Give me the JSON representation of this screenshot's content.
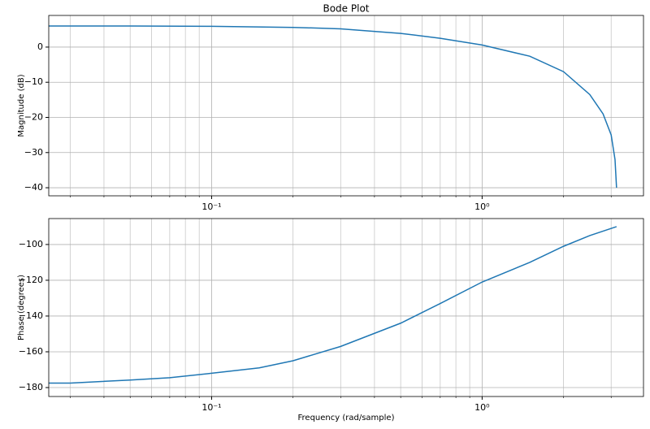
{
  "chart_data": [
    {
      "type": "line",
      "title": "Bode Plot",
      "ylabel": "Magnitude (dB)",
      "log_x": true,
      "grid": true,
      "xlim": [
        0.025,
        3.95
      ],
      "ylim": [
        -42.3,
        9
      ],
      "xticks": [
        {
          "value": 0.1,
          "label": "10⁻¹"
        },
        {
          "value": 1,
          "label": "10⁰"
        }
      ],
      "xminor_ticks": [
        0.03,
        0.04,
        0.05,
        0.06,
        0.07,
        0.08,
        0.09,
        0.2,
        0.3,
        0.4,
        0.5,
        0.6,
        0.7,
        0.8,
        0.9,
        2,
        3
      ],
      "yticks": [
        0,
        {
          "value": -10,
          "label": "−10"
        },
        {
          "value": -20,
          "label": "−20"
        },
        {
          "value": -30,
          "label": "−30"
        },
        {
          "value": -40,
          "label": "−40"
        }
      ],
      "x": [
        0.025,
        0.05,
        0.1,
        0.2,
        0.3,
        0.5,
        0.7,
        1.0,
        1.5,
        2.0,
        2.5,
        2.8,
        3.0,
        3.1,
        3.14
      ],
      "series": [
        {
          "color": "#1f77b4",
          "values": [
            6.0,
            6.0,
            5.9,
            5.6,
            5.2,
            3.9,
            2.5,
            0.6,
            -2.6,
            -7.0,
            -13.5,
            -19,
            -25,
            -32,
            -40
          ]
        }
      ]
    },
    {
      "type": "line",
      "ylabel": "Phase (degrees)",
      "xlabel": "Frequency (rad/sample)",
      "log_x": true,
      "grid": true,
      "xlim": [
        0.025,
        3.95
      ],
      "ylim": [
        -185,
        -85.5
      ],
      "xticks": [
        {
          "value": 0.1,
          "label": "10⁻¹"
        },
        {
          "value": 1,
          "label": "10⁰"
        }
      ],
      "xminor_ticks": [
        0.03,
        0.04,
        0.05,
        0.06,
        0.07,
        0.08,
        0.09,
        0.2,
        0.3,
        0.4,
        0.5,
        0.6,
        0.7,
        0.8,
        0.9,
        2,
        3
      ],
      "yticks": [
        {
          "value": -100,
          "label": "−100"
        },
        {
          "value": -120,
          "label": "−120"
        },
        {
          "value": -140,
          "label": "−140"
        },
        {
          "value": -160,
          "label": "−160"
        },
        {
          "value": -180,
          "label": "−180"
        }
      ],
      "x": [
        0.025,
        0.03,
        0.05,
        0.07,
        0.1,
        0.15,
        0.2,
        0.3,
        0.5,
        0.7,
        1.0,
        1.5,
        2.0,
        2.5,
        3.14
      ],
      "series": [
        {
          "color": "#1f77b4",
          "values": [
            -177.5,
            -177.5,
            -175.8,
            -174.5,
            -172,
            -169,
            -165,
            -157,
            -144,
            -133,
            -121,
            -110,
            -101,
            -95,
            -90
          ]
        }
      ]
    }
  ]
}
